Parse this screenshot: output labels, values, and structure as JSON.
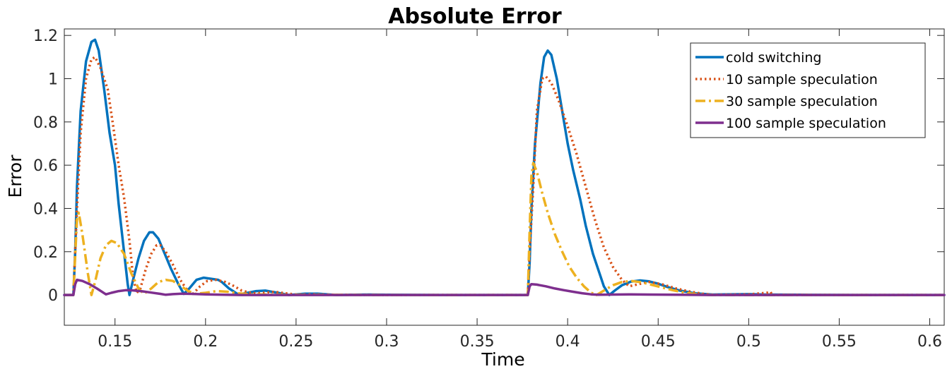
{
  "chart_data": {
    "type": "line",
    "title": "Absolute Error",
    "xlabel": "Time",
    "ylabel": "Error",
    "xlim": [
      0.122,
      0.608
    ],
    "ylim": [
      -0.14,
      1.23
    ],
    "xticks": [
      0.15,
      0.2,
      0.25,
      0.3,
      0.35,
      0.4,
      0.45,
      0.5,
      0.55,
      0.6
    ],
    "xtick_labels": [
      "0.15",
      "0.2",
      "0.25",
      "0.3",
      "0.35",
      "0.4",
      "0.45",
      "0.5",
      "0.55",
      "0.6"
    ],
    "yticks": [
      0,
      0.2,
      0.4,
      0.6,
      0.8,
      1,
      1.2
    ],
    "ytick_labels": [
      "0",
      "0.2",
      "0.4",
      "0.6",
      "0.8",
      "1",
      "1.2"
    ],
    "grid": false,
    "legend_position": "top-right",
    "series": [
      {
        "name": "cold switching",
        "color": "#0072BD",
        "style": "solid",
        "points": [
          [
            0.122,
            0
          ],
          [
            0.127,
            0
          ],
          [
            0.128,
            0.2
          ],
          [
            0.129,
            0.5
          ],
          [
            0.131,
            0.85
          ],
          [
            0.134,
            1.08
          ],
          [
            0.137,
            1.17
          ],
          [
            0.139,
            1.18
          ],
          [
            0.141,
            1.13
          ],
          [
            0.144,
            0.95
          ],
          [
            0.147,
            0.75
          ],
          [
            0.15,
            0.6
          ],
          [
            0.152,
            0.42
          ],
          [
            0.155,
            0.2
          ],
          [
            0.157,
            0.05
          ],
          [
            0.158,
            0.0
          ],
          [
            0.16,
            0.07
          ],
          [
            0.163,
            0.17
          ],
          [
            0.166,
            0.25
          ],
          [
            0.169,
            0.29
          ],
          [
            0.171,
            0.29
          ],
          [
            0.174,
            0.26
          ],
          [
            0.177,
            0.2
          ],
          [
            0.181,
            0.12
          ],
          [
            0.185,
            0.05
          ],
          [
            0.188,
            0.005
          ],
          [
            0.191,
            0.03
          ],
          [
            0.195,
            0.07
          ],
          [
            0.199,
            0.08
          ],
          [
            0.203,
            0.075
          ],
          [
            0.207,
            0.07
          ],
          [
            0.209,
            0.06
          ],
          [
            0.213,
            0.03
          ],
          [
            0.218,
            0.003
          ],
          [
            0.222,
            0.008
          ],
          [
            0.228,
            0.018
          ],
          [
            0.233,
            0.02
          ],
          [
            0.24,
            0.01
          ],
          [
            0.246,
            0.0
          ],
          [
            0.255,
            0.006
          ],
          [
            0.262,
            0.006
          ],
          [
            0.272,
            0.0
          ],
          [
            0.29,
            0.002
          ],
          [
            0.3,
            0.001
          ],
          [
            0.33,
            0.0
          ],
          [
            0.378,
            0
          ],
          [
            0.379,
            0.15
          ],
          [
            0.38,
            0.4
          ],
          [
            0.382,
            0.7
          ],
          [
            0.385,
            0.98
          ],
          [
            0.387,
            1.1
          ],
          [
            0.389,
            1.13
          ],
          [
            0.391,
            1.11
          ],
          [
            0.394,
            1.0
          ],
          [
            0.397,
            0.85
          ],
          [
            0.4,
            0.7
          ],
          [
            0.403,
            0.58
          ],
          [
            0.407,
            0.44
          ],
          [
            0.41,
            0.32
          ],
          [
            0.414,
            0.19
          ],
          [
            0.418,
            0.09
          ],
          [
            0.42,
            0.04
          ],
          [
            0.423,
            0.0
          ],
          [
            0.426,
            0.02
          ],
          [
            0.43,
            0.045
          ],
          [
            0.435,
            0.062
          ],
          [
            0.44,
            0.067
          ],
          [
            0.445,
            0.063
          ],
          [
            0.45,
            0.052
          ],
          [
            0.455,
            0.037
          ],
          [
            0.462,
            0.02
          ],
          [
            0.47,
            0.008
          ],
          [
            0.48,
            0.002
          ],
          [
            0.5,
            0.004
          ],
          [
            0.51,
            0.002
          ],
          [
            0.53,
            0.001
          ],
          [
            0.56,
            0
          ],
          [
            0.608,
            0
          ]
        ]
      },
      {
        "name": "10 sample speculation",
        "color": "#D95319",
        "style": "dotted",
        "points": [
          [
            0.122,
            0
          ],
          [
            0.127,
            0
          ],
          [
            0.129,
            0.4
          ],
          [
            0.131,
            0.75
          ],
          [
            0.134,
            1.0
          ],
          [
            0.137,
            1.09
          ],
          [
            0.139,
            1.1
          ],
          [
            0.142,
            1.05
          ],
          [
            0.146,
            0.95
          ],
          [
            0.149,
            0.78
          ],
          [
            0.152,
            0.6
          ],
          [
            0.155,
            0.45
          ],
          [
            0.158,
            0.25
          ],
          [
            0.16,
            0.08
          ],
          [
            0.162,
            0.01
          ],
          [
            0.164,
            0.03
          ],
          [
            0.167,
            0.12
          ],
          [
            0.17,
            0.19
          ],
          [
            0.173,
            0.23
          ],
          [
            0.175,
            0.23
          ],
          [
            0.178,
            0.2
          ],
          [
            0.182,
            0.14
          ],
          [
            0.186,
            0.07
          ],
          [
            0.19,
            0.02
          ],
          [
            0.193,
            0.005
          ],
          [
            0.197,
            0.04
          ],
          [
            0.201,
            0.065
          ],
          [
            0.206,
            0.07
          ],
          [
            0.211,
            0.06
          ],
          [
            0.216,
            0.04
          ],
          [
            0.22,
            0.02
          ],
          [
            0.226,
            0.008
          ],
          [
            0.232,
            0.01
          ],
          [
            0.238,
            0.015
          ],
          [
            0.244,
            0.008
          ],
          [
            0.25,
            0.002
          ],
          [
            0.26,
            0.003
          ],
          [
            0.27,
            0.001
          ],
          [
            0.3,
            0
          ],
          [
            0.378,
            0
          ],
          [
            0.379,
            0.2
          ],
          [
            0.381,
            0.5
          ],
          [
            0.383,
            0.85
          ],
          [
            0.386,
            1.0
          ],
          [
            0.388,
            1.01
          ],
          [
            0.391,
            0.98
          ],
          [
            0.395,
            0.9
          ],
          [
            0.4,
            0.78
          ],
          [
            0.405,
            0.65
          ],
          [
            0.41,
            0.5
          ],
          [
            0.415,
            0.35
          ],
          [
            0.42,
            0.22
          ],
          [
            0.425,
            0.13
          ],
          [
            0.43,
            0.07
          ],
          [
            0.434,
            0.04
          ],
          [
            0.439,
            0.05
          ],
          [
            0.445,
            0.06
          ],
          [
            0.452,
            0.05
          ],
          [
            0.46,
            0.03
          ],
          [
            0.468,
            0.015
          ],
          [
            0.475,
            0.005
          ],
          [
            0.48,
            0.001
          ],
          [
            0.5,
            0.003
          ],
          [
            0.51,
            0.01
          ],
          [
            0.512,
            0.015
          ],
          [
            0.513,
            0.0
          ],
          [
            0.52,
            0.001
          ],
          [
            0.55,
            0
          ],
          [
            0.608,
            0
          ]
        ]
      },
      {
        "name": "30 sample speculation",
        "color": "#EDB120",
        "style": "dashdot",
        "points": [
          [
            0.122,
            0
          ],
          [
            0.127,
            0
          ],
          [
            0.128,
            0.18
          ],
          [
            0.129,
            0.35
          ],
          [
            0.13,
            0.38
          ],
          [
            0.132,
            0.28
          ],
          [
            0.135,
            0.1
          ],
          [
            0.137,
            0.0
          ],
          [
            0.139,
            0.06
          ],
          [
            0.142,
            0.17
          ],
          [
            0.145,
            0.23
          ],
          [
            0.148,
            0.25
          ],
          [
            0.151,
            0.24
          ],
          [
            0.155,
            0.19
          ],
          [
            0.159,
            0.1
          ],
          [
            0.163,
            0.03
          ],
          [
            0.166,
            0.005
          ],
          [
            0.17,
            0.03
          ],
          [
            0.174,
            0.06
          ],
          [
            0.178,
            0.07
          ],
          [
            0.182,
            0.065
          ],
          [
            0.186,
            0.045
          ],
          [
            0.19,
            0.02
          ],
          [
            0.194,
            0.005
          ],
          [
            0.2,
            0.01
          ],
          [
            0.206,
            0.018
          ],
          [
            0.212,
            0.015
          ],
          [
            0.218,
            0.008
          ],
          [
            0.225,
            0.003
          ],
          [
            0.24,
            0.002
          ],
          [
            0.26,
            0.001
          ],
          [
            0.3,
            0
          ],
          [
            0.378,
            0
          ],
          [
            0.379,
            0.3
          ],
          [
            0.38,
            0.55
          ],
          [
            0.381,
            0.61
          ],
          [
            0.383,
            0.57
          ],
          [
            0.386,
            0.47
          ],
          [
            0.389,
            0.38
          ],
          [
            0.393,
            0.28
          ],
          [
            0.397,
            0.2
          ],
          [
            0.401,
            0.13
          ],
          [
            0.405,
            0.08
          ],
          [
            0.409,
            0.04
          ],
          [
            0.413,
            0.01
          ],
          [
            0.416,
            0.0
          ],
          [
            0.42,
            0.02
          ],
          [
            0.425,
            0.045
          ],
          [
            0.43,
            0.06
          ],
          [
            0.435,
            0.065
          ],
          [
            0.44,
            0.06
          ],
          [
            0.446,
            0.048
          ],
          [
            0.452,
            0.035
          ],
          [
            0.458,
            0.022
          ],
          [
            0.465,
            0.01
          ],
          [
            0.472,
            0.003
          ],
          [
            0.48,
            0
          ],
          [
            0.608,
            0
          ]
        ]
      },
      {
        "name": "100 sample speculation",
        "color": "#7E2F8E",
        "style": "solid",
        "points": [
          [
            0.122,
            0
          ],
          [
            0.127,
            0
          ],
          [
            0.128,
            0.05
          ],
          [
            0.129,
            0.07
          ],
          [
            0.132,
            0.065
          ],
          [
            0.136,
            0.05
          ],
          [
            0.14,
            0.03
          ],
          [
            0.145,
            0.003
          ],
          [
            0.148,
            0.01
          ],
          [
            0.152,
            0.018
          ],
          [
            0.156,
            0.022
          ],
          [
            0.16,
            0.021
          ],
          [
            0.165,
            0.017
          ],
          [
            0.17,
            0.011
          ],
          [
            0.175,
            0.005
          ],
          [
            0.178,
            0.001
          ],
          [
            0.182,
            0.004
          ],
          [
            0.187,
            0.006
          ],
          [
            0.192,
            0.005
          ],
          [
            0.2,
            0.003
          ],
          [
            0.21,
            0.001
          ],
          [
            0.22,
            0.0
          ],
          [
            0.3,
            0
          ],
          [
            0.378,
            0
          ],
          [
            0.379,
            0.04
          ],
          [
            0.38,
            0.05
          ],
          [
            0.383,
            0.048
          ],
          [
            0.388,
            0.04
          ],
          [
            0.393,
            0.03
          ],
          [
            0.398,
            0.022
          ],
          [
            0.403,
            0.015
          ],
          [
            0.408,
            0.008
          ],
          [
            0.413,
            0.003
          ],
          [
            0.417,
            0.001
          ],
          [
            0.425,
            0.002
          ],
          [
            0.435,
            0.003
          ],
          [
            0.445,
            0.002
          ],
          [
            0.46,
            0.001
          ],
          [
            0.48,
            0
          ],
          [
            0.608,
            0
          ]
        ]
      }
    ]
  }
}
